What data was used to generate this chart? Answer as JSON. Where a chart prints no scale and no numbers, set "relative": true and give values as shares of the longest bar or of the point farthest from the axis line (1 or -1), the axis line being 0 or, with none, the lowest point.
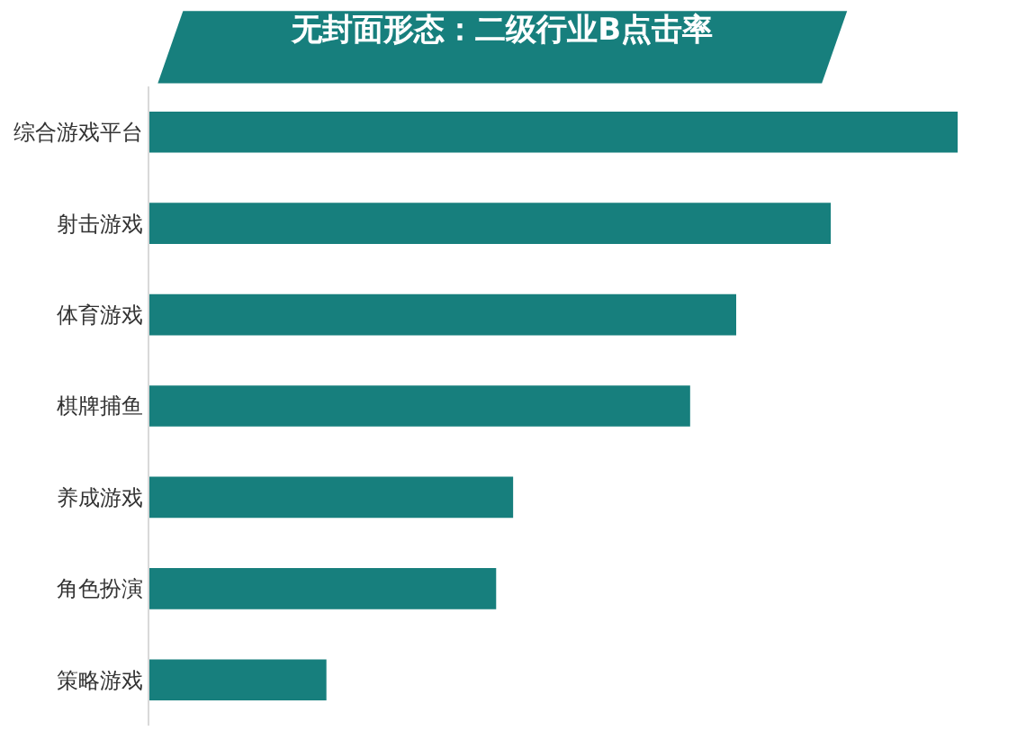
{
  "chart_data": {
    "type": "bar",
    "orientation": "horizontal",
    "relative": true,
    "title": "无封面形态：二级行业B点击率",
    "categories": [
      "综合游戏平台",
      "射击游戏",
      "体育游戏",
      "棋牌捕鱼",
      "养成游戏",
      "角色扮演",
      "策略游戏"
    ],
    "values": [
      1,
      0.843,
      0.726,
      0.669,
      0.45,
      0.429,
      0.219
    ],
    "color": "#177f7d",
    "legend": false
  }
}
